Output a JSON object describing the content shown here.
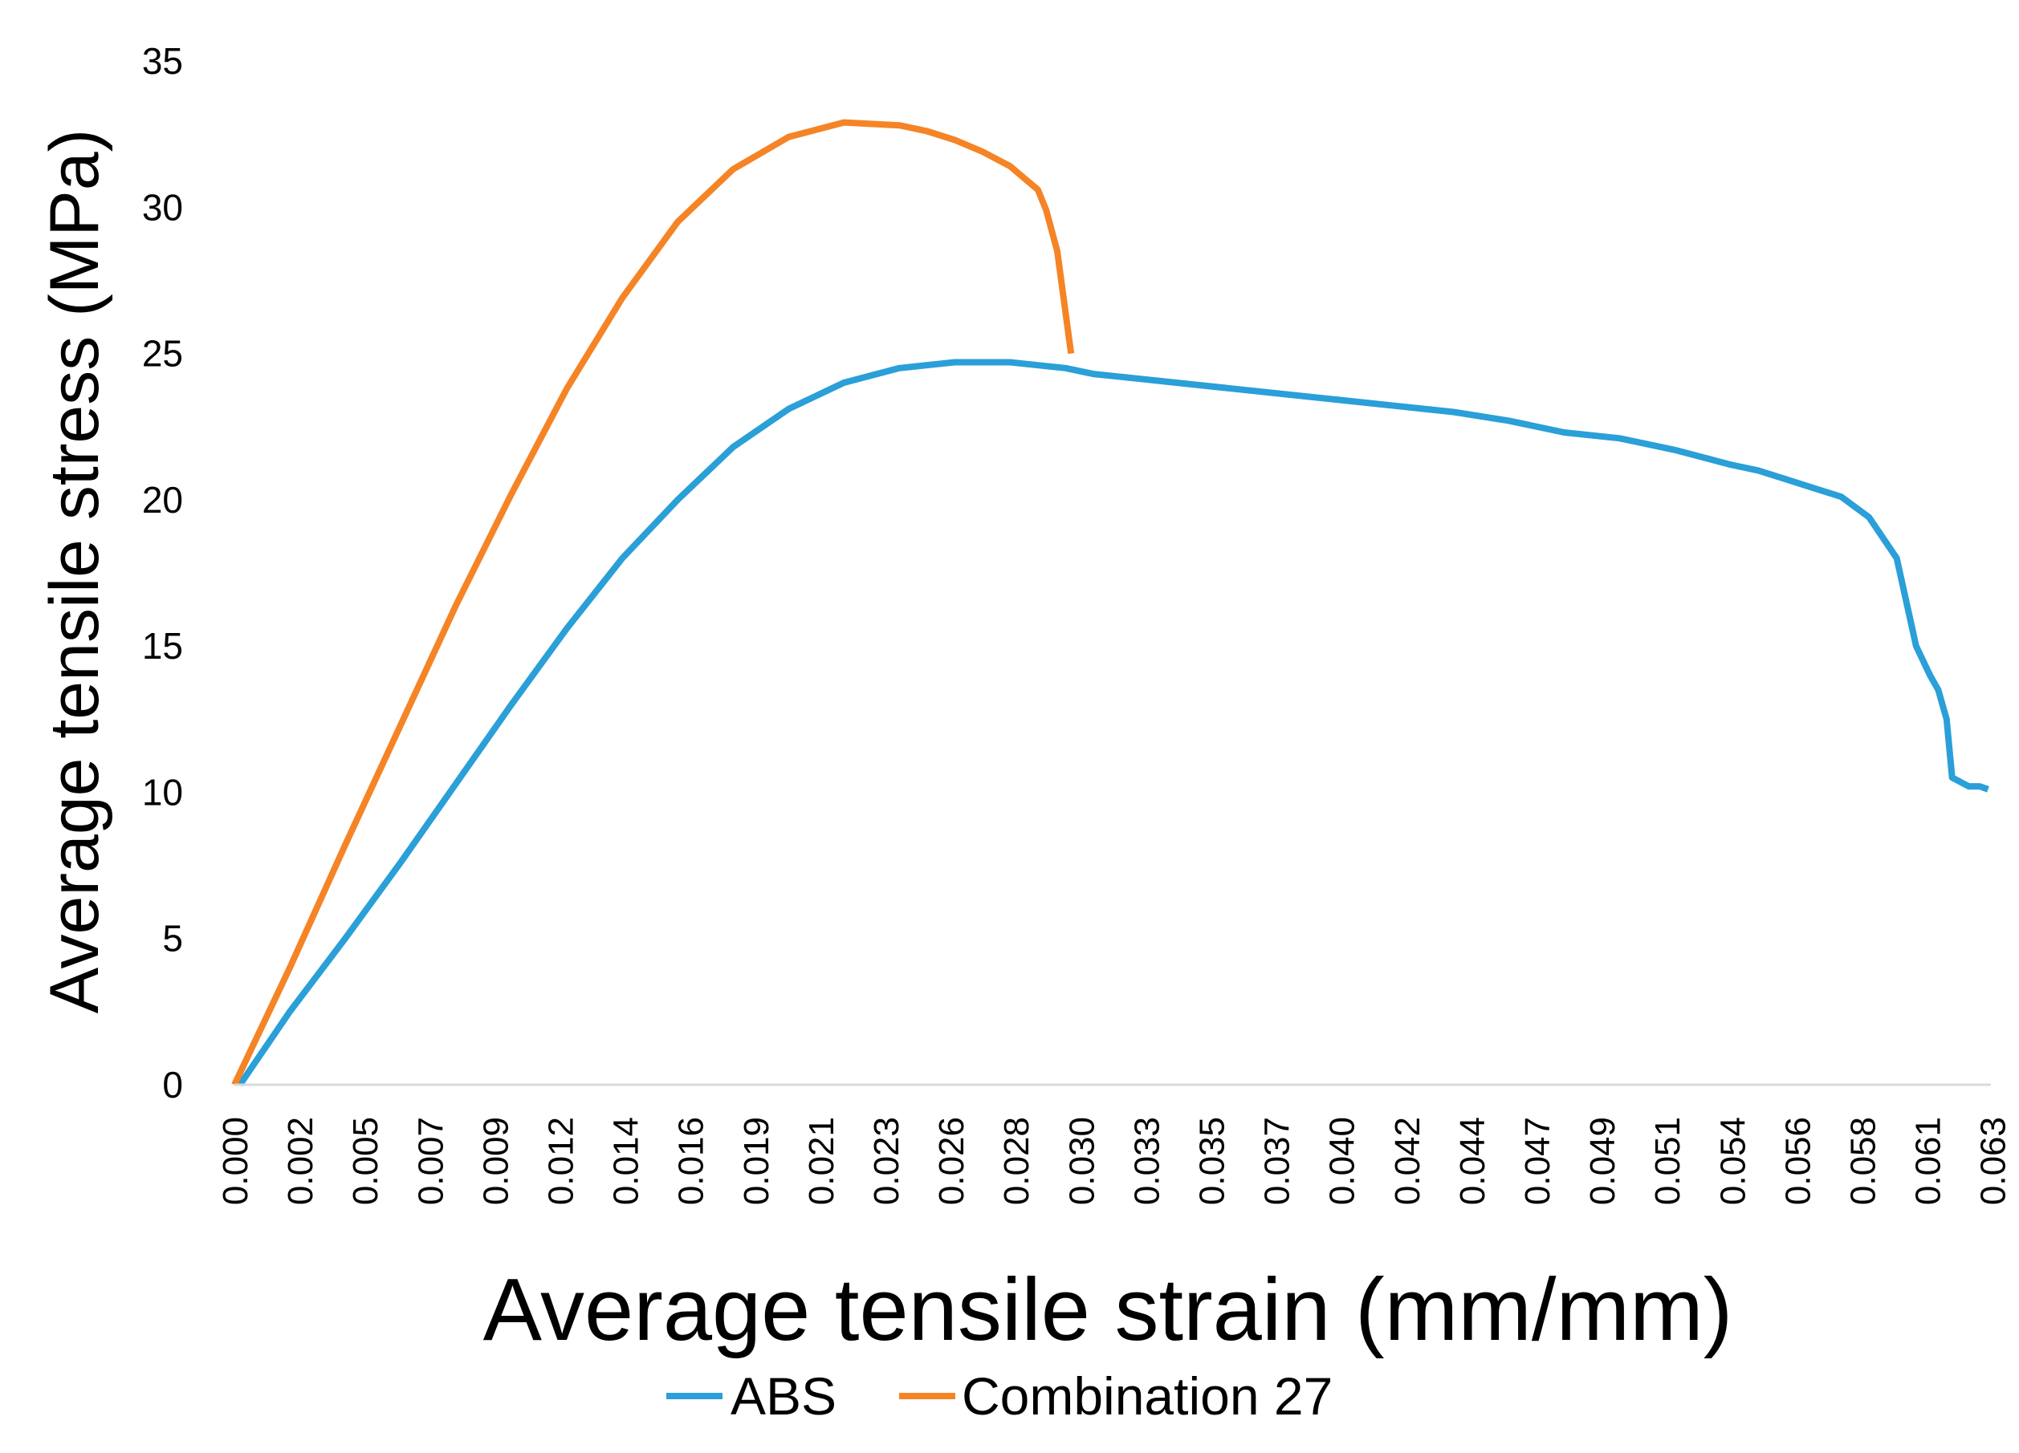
{
  "chart_data": {
    "type": "line",
    "xlabel": "Average tensile strain (mm/mm)",
    "ylabel": "Average tensile stress (MPa)",
    "xlim": [
      0,
      0.0634
    ],
    "ylim": [
      0,
      35
    ],
    "y_ticks": [
      0,
      5,
      10,
      15,
      20,
      25,
      30,
      35
    ],
    "x_tick_labels": [
      "0.000",
      "0.002",
      "0.005",
      "0.007",
      "0.009",
      "0.012",
      "0.014",
      "0.016",
      "0.019",
      "0.021",
      "0.023",
      "0.026",
      "0.028",
      "0.030",
      "0.033",
      "0.035",
      "0.037",
      "0.040",
      "0.042",
      "0.044",
      "0.047",
      "0.049",
      "0.051",
      "0.054",
      "0.056",
      "0.058",
      "0.061",
      "0.063"
    ],
    "x_tick_values": [
      0.0,
      0.00235,
      0.0047,
      0.00705,
      0.0094,
      0.01175,
      0.0141,
      0.01645,
      0.0188,
      0.02115,
      0.0235,
      0.02585,
      0.0282,
      0.03055,
      0.0329,
      0.03525,
      0.0376,
      0.03995,
      0.0423,
      0.04465,
      0.047,
      0.04935,
      0.0517,
      0.05405,
      0.0564,
      0.05875,
      0.0611,
      0.06345
    ],
    "grid": false,
    "legend_position": "bottom",
    "series": [
      {
        "name": "ABS",
        "color": "#2a9fd8",
        "x": [
          0.0002,
          0.002,
          0.004,
          0.006,
          0.008,
          0.01,
          0.012,
          0.014,
          0.016,
          0.018,
          0.02,
          0.022,
          0.024,
          0.026,
          0.027,
          0.028,
          0.029,
          0.03,
          0.031,
          0.032,
          0.034,
          0.036,
          0.038,
          0.04,
          0.042,
          0.044,
          0.046,
          0.048,
          0.05,
          0.052,
          0.054,
          0.055,
          0.056,
          0.057,
          0.058,
          0.059,
          0.06,
          0.0607,
          0.0612,
          0.0615,
          0.0618,
          0.062,
          0.0622,
          0.0624,
          0.0626,
          0.0628,
          0.063,
          0.0633
        ],
        "values": [
          0,
          2.5,
          5.0,
          7.6,
          10.3,
          13.0,
          15.6,
          18.0,
          20.0,
          21.8,
          23.1,
          24.0,
          24.5,
          24.7,
          24.7,
          24.7,
          24.6,
          24.5,
          24.3,
          24.2,
          24.0,
          23.8,
          23.6,
          23.4,
          23.2,
          23.0,
          22.7,
          22.3,
          22.1,
          21.7,
          21.2,
          21.0,
          20.7,
          20.4,
          20.1,
          19.4,
          18.0,
          15.0,
          14.0,
          13.5,
          12.5,
          10.5,
          10.4,
          10.3,
          10.2,
          10.2,
          10.2,
          10.1
        ],
        "values_note": "values read from curve"
      },
      {
        "name": "Combination 27",
        "color": "#f58426",
        "x": [
          0.0,
          0.002,
          0.004,
          0.006,
          0.008,
          0.01,
          0.012,
          0.014,
          0.016,
          0.018,
          0.02,
          0.022,
          0.024,
          0.025,
          0.026,
          0.027,
          0.028,
          0.029,
          0.0293,
          0.0297,
          0.0302
        ],
        "values": [
          0,
          4.0,
          8.2,
          12.3,
          16.4,
          20.2,
          23.8,
          26.9,
          29.5,
          31.3,
          32.4,
          32.9,
          32.8,
          32.6,
          32.3,
          31.9,
          31.4,
          30.6,
          29.9,
          28.5,
          25.0
        ]
      }
    ]
  }
}
